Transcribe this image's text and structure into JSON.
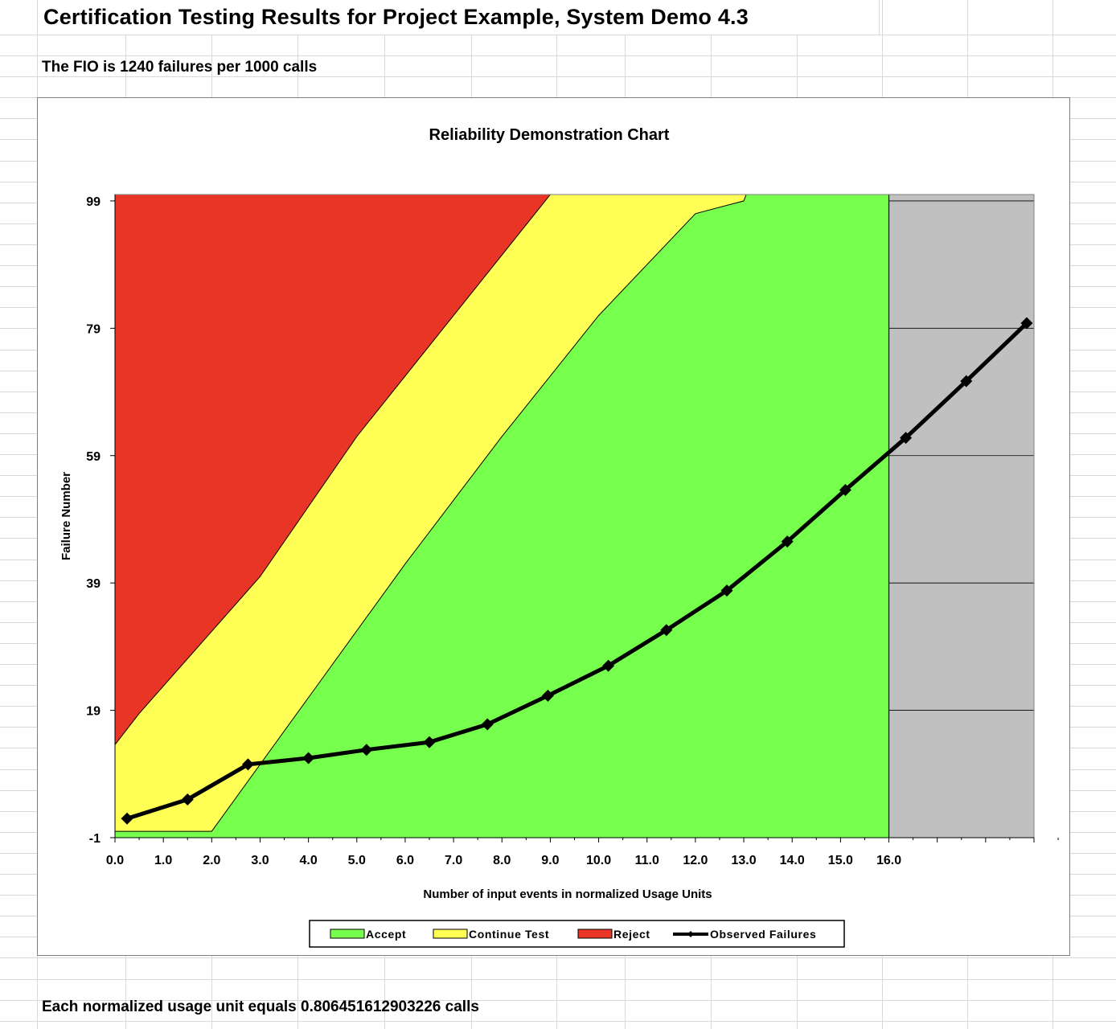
{
  "sheet": {
    "title": "Certification Testing Results for Project Example, System Demo 4.3",
    "fio_text": "The FIO is 1240 failures per 1000 calls",
    "footer_text": "Each normalized usage unit equals 0.806451612903226 calls"
  },
  "chart_data": {
    "type": "area",
    "title": "Reliability Demonstration Chart",
    "xlabel": "Number of input events in normalized Usage Units",
    "ylabel": "Failure Number",
    "xlim": [
      0,
      19
    ],
    "ylim": [
      -1,
      100
    ],
    "y_ticks": [
      -1,
      19,
      39,
      59,
      79,
      99
    ],
    "x_ticks": [
      0,
      1,
      2,
      3,
      4,
      5,
      6,
      7,
      8,
      9,
      10,
      11,
      12,
      13,
      14,
      15,
      16
    ],
    "x_tick_labels": [
      "0.0",
      "1.0",
      "2.0",
      "3.0",
      "4.0",
      "5.0",
      "6.0",
      "7.0",
      "8.0",
      "9.0",
      "10.0",
      "11.0",
      "12.0",
      "13.0",
      "14.0",
      "15.0",
      "16.0"
    ],
    "region_end_x": 16,
    "reject_boundary": {
      "x": [
        0,
        0.5,
        3,
        5,
        7,
        9
      ],
      "y": [
        13.6,
        18.5,
        40,
        62,
        81,
        100
      ]
    },
    "accept_boundary": {
      "x": [
        0,
        2,
        4,
        6,
        8,
        10,
        12,
        13,
        13.05
      ],
      "y": [
        0,
        0,
        21,
        42,
        62,
        81,
        97,
        99,
        100
      ]
    },
    "series": [
      {
        "name": "Observed Failures",
        "x": [
          0.25,
          1.5,
          2.75,
          4,
          5.2,
          6.5,
          7.7,
          8.95,
          10.2,
          11.4,
          12.65,
          13.9,
          15.1,
          16.35,
          17.6,
          18.85
        ],
        "y": [
          2,
          5,
          10.5,
          11.5,
          12.8,
          14,
          16.8,
          21.3,
          26,
          31.6,
          37.8,
          45.5,
          53.6,
          61.8,
          70.7,
          79.8
        ]
      }
    ],
    "legend": {
      "position": "bottom",
      "entries": [
        {
          "label": "Accept",
          "color": "#77ff4e"
        },
        {
          "label": "Continue Test",
          "color": "#ffff55"
        },
        {
          "label": "Reject",
          "color": "#e93526"
        },
        {
          "label": "Observed Failures",
          "color": "#000000"
        }
      ]
    },
    "colors": {
      "accept": "#77ff4e",
      "continue": "#ffff55",
      "reject": "#e93526",
      "beyond": "#c0c0c0",
      "observed": "#000000"
    },
    "grid": true
  }
}
